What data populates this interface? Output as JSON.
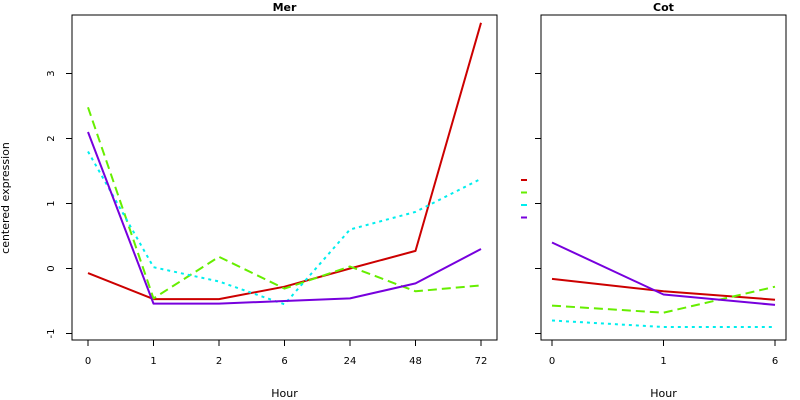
{
  "chart_data": [
    {
      "type": "line",
      "title": "Mer",
      "xlabel": "Hour",
      "ylabel": "centered expression",
      "categories": [
        "0",
        "1",
        "2",
        "6",
        "24",
        "48",
        "72"
      ],
      "ylim": [
        -1.1,
        3.9
      ],
      "yticks": [
        -1,
        0,
        1,
        2,
        3
      ],
      "grid": false,
      "series": [
        {
          "color": "#cc0000",
          "dash": "solid",
          "values": [
            -0.07,
            -0.47,
            -0.47,
            -0.28,
            0.0,
            0.27,
            3.78
          ]
        },
        {
          "color": "#66ee00",
          "dash": "dashed",
          "values": [
            2.48,
            -0.46,
            0.18,
            -0.31,
            0.03,
            -0.35,
            -0.26
          ]
        },
        {
          "color": "#00eeee",
          "dash": "dotted",
          "values": [
            1.8,
            0.02,
            -0.2,
            -0.55,
            0.6,
            0.87,
            1.38
          ]
        },
        {
          "color": "#7700dd",
          "dash": "solid",
          "values": [
            2.1,
            -0.54,
            -0.54,
            -0.5,
            -0.46,
            -0.23,
            0.3
          ]
        }
      ]
    },
    {
      "type": "line",
      "title": "Cot",
      "xlabel": "Hour",
      "ylabel": "",
      "categories": [
        "0",
        "1",
        "6"
      ],
      "ylim": [
        -1.1,
        3.9
      ],
      "yticks": [
        -1,
        0,
        1,
        2,
        3
      ],
      "grid": false,
      "series": [
        {
          "color": "#cc0000",
          "dash": "solid",
          "values": [
            -0.16,
            -0.35,
            -0.48
          ]
        },
        {
          "color": "#66ee00",
          "dash": "dashed",
          "values": [
            -0.57,
            -0.68,
            -0.28
          ]
        },
        {
          "color": "#00eeee",
          "dash": "dotted",
          "values": [
            -0.8,
            -0.9,
            -0.9
          ]
        },
        {
          "color": "#7700dd",
          "dash": "solid",
          "values": [
            0.4,
            -0.4,
            -0.56
          ]
        }
      ]
    }
  ],
  "legend": {
    "placement": "between-panels",
    "colors": [
      "#cc0000",
      "#66ee00",
      "#00eeee",
      "#7700dd"
    ]
  }
}
